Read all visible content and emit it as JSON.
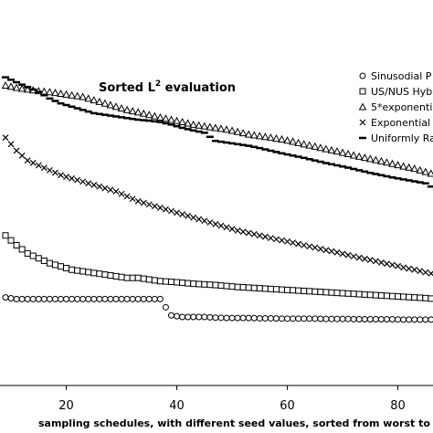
{
  "chart_data": {
    "type": "scatter",
    "title": "Sorted L",
    "title_superscript": "2",
    "title_suffix": " evaluation",
    "xlabel": "sampling schedules, with different seed values, sorted from worst to b",
    "ylabel": "",
    "xlim": [
      9,
      94
    ],
    "ylim": [
      0,
      1
    ],
    "xticks": [
      "20",
      "40",
      "60",
      "80"
    ],
    "grid": false,
    "legend_position": "top-right",
    "series": [
      {
        "name": "Sinusodial P",
        "marker": "circle",
        "x": [
          9,
          11,
          13,
          15,
          17,
          19,
          21,
          23,
          25,
          27,
          29,
          31,
          33,
          35,
          37,
          39,
          41,
          43,
          45,
          47,
          49,
          51,
          53,
          55,
          57,
          59,
          61,
          63,
          65,
          67,
          69,
          71,
          73,
          75,
          77,
          79,
          81,
          83,
          85,
          87,
          89,
          91,
          93
        ],
        "values": [
          0.27,
          0.265,
          0.265,
          0.265,
          0.265,
          0.265,
          0.265,
          0.265,
          0.265,
          0.265,
          0.265,
          0.265,
          0.265,
          0.265,
          0.265,
          0.215,
          0.21,
          0.21,
          0.21,
          0.208,
          0.207,
          0.207,
          0.207,
          0.206,
          0.206,
          0.205,
          0.205,
          0.205,
          0.205,
          0.204,
          0.204,
          0.204,
          0.203,
          0.203,
          0.203,
          0.203,
          0.202,
          0.202,
          0.202,
          0.202,
          0.201,
          0.2,
          0.2
        ]
      },
      {
        "name": "US/NUS Hyb",
        "marker": "square",
        "x": [
          9,
          11,
          13,
          15,
          17,
          19,
          21,
          23,
          25,
          27,
          29,
          31,
          33,
          35,
          37,
          39,
          41,
          43,
          45,
          47,
          49,
          51,
          53,
          55,
          57,
          59,
          61,
          63,
          65,
          67,
          69,
          71,
          73,
          75,
          77,
          79,
          81,
          83,
          85,
          87,
          89,
          91,
          93
        ],
        "values": [
          0.46,
          0.43,
          0.405,
          0.39,
          0.375,
          0.365,
          0.355,
          0.35,
          0.345,
          0.34,
          0.335,
          0.33,
          0.33,
          0.325,
          0.32,
          0.318,
          0.315,
          0.312,
          0.31,
          0.308,
          0.305,
          0.302,
          0.3,
          0.298,
          0.296,
          0.294,
          0.292,
          0.29,
          0.288,
          0.286,
          0.284,
          0.282,
          0.28,
          0.278,
          0.276,
          0.274,
          0.272,
          0.27,
          0.268,
          0.265,
          0.262,
          0.258,
          0.255
        ]
      },
      {
        "name": "5*exponenti",
        "marker": "triangle",
        "x": [
          9,
          11,
          13,
          15,
          17,
          19,
          21,
          23,
          25,
          27,
          29,
          31,
          33,
          35,
          37,
          39,
          41,
          43,
          45,
          47,
          49,
          51,
          53,
          55,
          57,
          59,
          61,
          63,
          65,
          67,
          69,
          71,
          73,
          75,
          77,
          79,
          81,
          83,
          85,
          87,
          89,
          91,
          93
        ],
        "values": [
          0.92,
          0.913,
          0.908,
          0.903,
          0.9,
          0.895,
          0.89,
          0.885,
          0.875,
          0.865,
          0.855,
          0.845,
          0.838,
          0.83,
          0.822,
          0.815,
          0.808,
          0.8,
          0.795,
          0.79,
          0.785,
          0.778,
          0.77,
          0.765,
          0.76,
          0.755,
          0.748,
          0.74,
          0.733,
          0.725,
          0.718,
          0.71,
          0.702,
          0.695,
          0.688,
          0.68,
          0.672,
          0.665,
          0.655,
          0.645,
          0.635,
          0.62,
          0.6
        ]
      },
      {
        "name": "Exponential",
        "marker": "cross",
        "x": [
          9,
          11,
          13,
          15,
          17,
          19,
          21,
          23,
          25,
          27,
          29,
          31,
          33,
          35,
          37,
          39,
          41,
          43,
          45,
          47,
          49,
          51,
          53,
          55,
          57,
          59,
          61,
          63,
          65,
          67,
          69,
          71,
          73,
          75,
          77,
          79,
          81,
          83,
          85,
          87,
          89,
          91,
          93
        ],
        "values": [
          0.76,
          0.72,
          0.69,
          0.675,
          0.66,
          0.645,
          0.635,
          0.625,
          0.615,
          0.605,
          0.595,
          0.58,
          0.565,
          0.555,
          0.545,
          0.535,
          0.525,
          0.515,
          0.505,
          0.495,
          0.485,
          0.475,
          0.468,
          0.46,
          0.452,
          0.445,
          0.438,
          0.43,
          0.423,
          0.415,
          0.408,
          0.4,
          0.392,
          0.385,
          0.377,
          0.37,
          0.362,
          0.355,
          0.347,
          0.34,
          0.33,
          0.32,
          0.31
        ]
      },
      {
        "name": "Uniformly Ra",
        "marker": "dash",
        "x": [
          9,
          11,
          13,
          15,
          17,
          19,
          21,
          23,
          25,
          27,
          29,
          31,
          33,
          35,
          37,
          39,
          41,
          43,
          45,
          47,
          49,
          51,
          53,
          55,
          57,
          59,
          61,
          63,
          65,
          67,
          69,
          71,
          73,
          75,
          77,
          79,
          81,
          83,
          85,
          87,
          89,
          91,
          93
        ],
        "values": [
          0.945,
          0.93,
          0.915,
          0.9,
          0.88,
          0.865,
          0.855,
          0.845,
          0.835,
          0.83,
          0.825,
          0.82,
          0.815,
          0.812,
          0.808,
          0.8,
          0.79,
          0.782,
          0.775,
          0.75,
          0.745,
          0.74,
          0.735,
          0.728,
          0.72,
          0.712,
          0.705,
          0.698,
          0.69,
          0.682,
          0.675,
          0.668,
          0.66,
          0.652,
          0.645,
          0.638,
          0.632,
          0.626,
          0.62,
          0.6,
          0.59,
          0.585,
          0.58
        ]
      }
    ]
  }
}
